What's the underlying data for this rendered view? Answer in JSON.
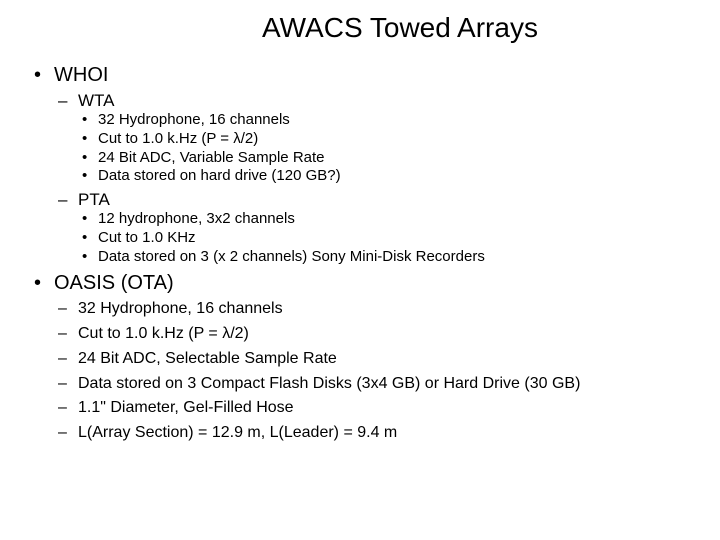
{
  "title": "AWACS Towed Arrays",
  "level1": [
    {
      "label": "WHOI",
      "children": [
        {
          "label": "WTA",
          "children": [
            "32 Hydrophone, 16 channels",
            "Cut to 1.0 k.Hz (P = λ/2)",
            "24 Bit ADC, Variable Sample Rate",
            "Data stored on hard drive (120 GB?)"
          ]
        },
        {
          "label": "PTA",
          "children": [
            "12 hydrophone, 3x2 channels",
            "Cut to 1.0 KHz",
            "Data stored on 3 (x 2 channels) Sony Mini-Disk Recorders"
          ]
        }
      ]
    },
    {
      "label": "OASIS (OTA)",
      "dash_children": [
        "32 Hydrophone, 16 channels",
        "Cut to 1.0 k.Hz (P = λ/2)",
        "24 Bit ADC, Selectable Sample Rate",
        "Data stored on 3 Compact Flash Disks (3x4 GB) or Hard Drive (30 GB)",
        "1.1\" Diameter, Gel-Filled Hose",
        "L(Array Section) = 12.9 m, L(Leader) = 9.4 m"
      ]
    }
  ],
  "colors": {
    "background": "#ffffff",
    "text": "#000000"
  },
  "fontsizes": {
    "title": 28,
    "lvl1": 20,
    "lvl2": 17,
    "lvl3": 15
  }
}
